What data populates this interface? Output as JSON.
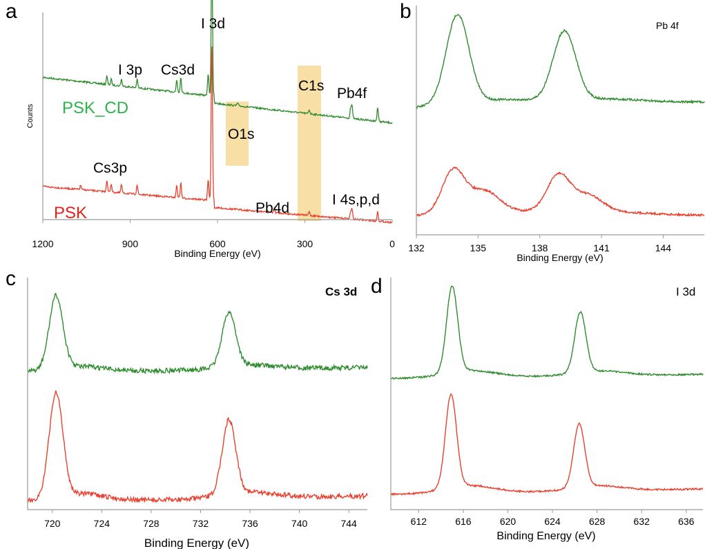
{
  "colors": {
    "top": "#2e8b2e",
    "bottom": "#e8402f",
    "highlight": "#f7dfa6",
    "psk_cd_label": "#2db34a",
    "psk_label": "#e32119"
  },
  "chart_data": [
    {
      "id": "a",
      "panel_letter": "a",
      "type": "line",
      "title": "",
      "xlabel": "Binding Energy (eV)",
      "ylabel": "Counts",
      "xlim": [
        1200,
        0
      ],
      "xticks": [
        1200,
        900,
        600,
        300,
        0
      ],
      "series": [
        {
          "name": "PSK_CD",
          "color": "#2e8b2e"
        },
        {
          "name": "PSK",
          "color": "#e8402f"
        }
      ],
      "peak_labels": [
        "I 3p",
        "Cs3d",
        "I 3d",
        "C1s",
        "Pb4f",
        "O1s",
        "Cs3p",
        "Pb4d",
        "I 4s,p,d"
      ],
      "highlighted_regions": [
        {
          "label": "O1s",
          "x": [
            558,
            505
          ]
        },
        {
          "label": "C1s",
          "x": [
            318,
            243
          ]
        }
      ]
    },
    {
      "id": "b",
      "panel_letter": "b",
      "type": "line",
      "title": "Pb 4f",
      "xlabel": "Binding Energy (eV)",
      "ylabel": "",
      "xlim": [
        132,
        146
      ],
      "xticks": [
        132,
        135,
        138,
        141,
        144
      ],
      "series": [
        {
          "name": "",
          "color": "#2e8b2e",
          "peaks": [
            {
              "x": 134.0,
              "height": 1.0
            },
            {
              "x": 139.2,
              "height": 0.78
            }
          ]
        },
        {
          "name": "",
          "color": "#e8402f",
          "peaks": [
            {
              "x": 133.8,
              "height": 0.72
            },
            {
              "x": 135.3,
              "height": 0.35
            },
            {
              "x": 138.9,
              "height": 0.6
            },
            {
              "x": 140.3,
              "height": 0.28
            }
          ]
        }
      ]
    },
    {
      "id": "c",
      "panel_letter": "c",
      "type": "line",
      "title": "Cs 3d",
      "xlabel": "Binding Energy (eV)",
      "ylabel": "",
      "xlim": [
        718,
        745.5
      ],
      "xticks": [
        720,
        724,
        728,
        732,
        736,
        740,
        744
      ],
      "series": [
        {
          "name": "",
          "color": "#2e8b2e",
          "peaks": [
            {
              "x": 720.3,
              "height": 1.0
            },
            {
              "x": 734.3,
              "height": 0.75
            }
          ]
        },
        {
          "name": "",
          "color": "#e8402f",
          "peaks": [
            {
              "x": 720.3,
              "height": 1.0
            },
            {
              "x": 734.3,
              "height": 0.72
            }
          ]
        }
      ]
    },
    {
      "id": "d",
      "panel_letter": "d",
      "type": "line",
      "title": "I 3d",
      "xlabel": "Binding Energy (eV)",
      "ylabel": "",
      "xlim": [
        609.5,
        637.5
      ],
      "xticks": [
        612,
        616,
        620,
        624,
        628,
        632,
        636
      ],
      "series": [
        {
          "name": "",
          "color": "#2e8b2e",
          "peaks": [
            {
              "x": 615.0,
              "height": 1.0
            },
            {
              "x": 626.5,
              "height": 0.7
            }
          ]
        },
        {
          "name": "",
          "color": "#e8402f",
          "peaks": [
            {
              "x": 614.9,
              "height": 1.0
            },
            {
              "x": 626.4,
              "height": 0.68
            }
          ]
        }
      ]
    }
  ]
}
